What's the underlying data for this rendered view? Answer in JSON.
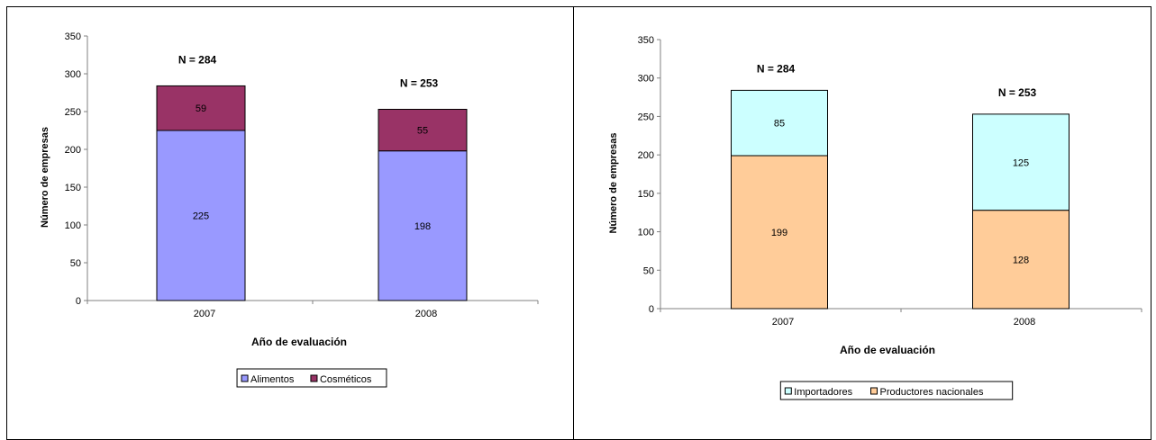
{
  "chart_data": [
    {
      "type": "bar",
      "stacked": true,
      "categories": [
        "2007",
        "2008"
      ],
      "series": [
        {
          "name": "Alimentos",
          "values": [
            225,
            198
          ],
          "color": "#9999ff"
        },
        {
          "name": "Cosméticos",
          "values": [
            59,
            55
          ],
          "color": "#993366"
        }
      ],
      "totals": [
        "N = 284",
        "N = 253"
      ],
      "xlabel": "Año de evaluación",
      "ylabel": "Número de empresas",
      "ylim": [
        0,
        350
      ],
      "yticks": [
        0,
        50,
        100,
        150,
        200,
        250,
        300,
        350
      ],
      "legend_position": "bottom",
      "grid": false
    },
    {
      "type": "bar",
      "stacked": true,
      "categories": [
        "2007",
        "2008"
      ],
      "series": [
        {
          "name": "Productores nacionales",
          "values": [
            199,
            128
          ],
          "color": "#ffcc99"
        },
        {
          "name": "Importadores",
          "values": [
            85,
            125
          ],
          "color": "#ccffff"
        }
      ],
      "totals": [
        "N = 284",
        "N = 253"
      ],
      "xlabel": "Año de evaluación",
      "ylabel": "Número de empresas",
      "ylim": [
        0,
        350
      ],
      "yticks": [
        0,
        50,
        100,
        150,
        200,
        250,
        300,
        350
      ],
      "legend_order": [
        "Importadores",
        "Productores nacionales"
      ],
      "legend_position": "bottom",
      "grid": false
    }
  ]
}
